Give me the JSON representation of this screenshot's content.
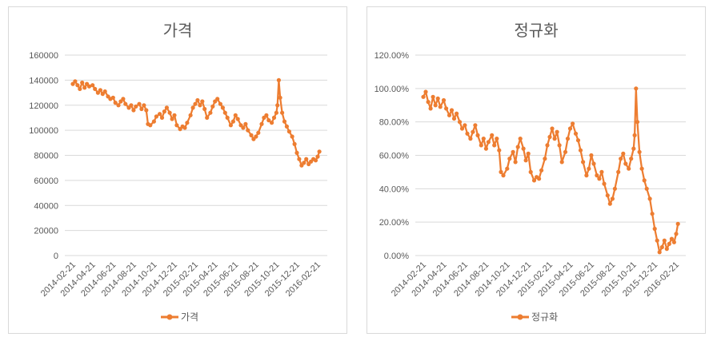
{
  "colors": {
    "series": "#ED7D31",
    "grid": "#D9D9D9",
    "text": "#595959"
  },
  "chart_data": [
    {
      "type": "line",
      "title": "가격",
      "xlabel": "",
      "ylabel": "",
      "ylim": [
        0,
        160000
      ],
      "yticks": [
        "0",
        "20000",
        "40000",
        "60000",
        "80000",
        "100000",
        "120000",
        "140000",
        "160000"
      ],
      "xticks": [
        "2014-02-21",
        "2014-04-21",
        "2014-06-21",
        "2014-08-21",
        "2014-10-21",
        "2014-12-21",
        "2015-02-21",
        "2015-04-21",
        "2015-06-21",
        "2015-08-21",
        "2015-10-21",
        "2015-12-21",
        "2016-02-21"
      ],
      "legend": "bottom",
      "series": [
        {
          "name": "가격",
          "points": [
            [
              "2014-02-21",
              137000
            ],
            [
              "2014-02-28",
              139000
            ],
            [
              "2014-03-07",
              136000
            ],
            [
              "2014-03-14",
              133000
            ],
            [
              "2014-03-21",
              138000
            ],
            [
              "2014-03-28",
              134000
            ],
            [
              "2014-04-04",
              137000
            ],
            [
              "2014-04-11",
              135000
            ],
            [
              "2014-04-21",
              136000
            ],
            [
              "2014-04-28",
              133000
            ],
            [
              "2014-05-07",
              130000
            ],
            [
              "2014-05-14",
              132000
            ],
            [
              "2014-05-21",
              129000
            ],
            [
              "2014-05-28",
              131000
            ],
            [
              "2014-06-06",
              127000
            ],
            [
              "2014-06-13",
              125000
            ],
            [
              "2014-06-21",
              126000
            ],
            [
              "2014-06-28",
              122000
            ],
            [
              "2014-07-07",
              120000
            ],
            [
              "2014-07-14",
              123000
            ],
            [
              "2014-07-21",
              125000
            ],
            [
              "2014-07-28",
              121000
            ],
            [
              "2014-08-07",
              118000
            ],
            [
              "2014-08-14",
              120000
            ],
            [
              "2014-08-21",
              116000
            ],
            [
              "2014-08-28",
              119000
            ],
            [
              "2014-09-07",
              121000
            ],
            [
              "2014-09-14",
              117000
            ],
            [
              "2014-09-21",
              120000
            ],
            [
              "2014-09-28",
              116000
            ],
            [
              "2014-10-03",
              105000
            ],
            [
              "2014-10-10",
              104000
            ],
            [
              "2014-10-21",
              107000
            ],
            [
              "2014-10-28",
              111000
            ],
            [
              "2014-11-07",
              113000
            ],
            [
              "2014-11-14",
              110000
            ],
            [
              "2014-11-21",
              115000
            ],
            [
              "2014-11-28",
              118000
            ],
            [
              "2014-12-07",
              114000
            ],
            [
              "2014-12-14",
              109000
            ],
            [
              "2014-12-21",
              112000
            ],
            [
              "2014-12-28",
              104000
            ],
            [
              "2015-01-07",
              101000
            ],
            [
              "2015-01-14",
              103000
            ],
            [
              "2015-01-21",
              102000
            ],
            [
              "2015-01-28",
              106000
            ],
            [
              "2015-02-07",
              112000
            ],
            [
              "2015-02-14",
              118000
            ],
            [
              "2015-02-21",
              121000
            ],
            [
              "2015-02-28",
              124000
            ],
            [
              "2015-03-07",
              120000
            ],
            [
              "2015-03-14",
              123000
            ],
            [
              "2015-03-21",
              117000
            ],
            [
              "2015-03-28",
              110000
            ],
            [
              "2015-04-07",
              114000
            ],
            [
              "2015-04-14",
              119000
            ],
            [
              "2015-04-21",
              123000
            ],
            [
              "2015-04-28",
              125000
            ],
            [
              "2015-05-07",
              121000
            ],
            [
              "2015-05-14",
              118000
            ],
            [
              "2015-05-21",
              114000
            ],
            [
              "2015-05-28",
              110000
            ],
            [
              "2015-06-07",
              104000
            ],
            [
              "2015-06-14",
              107000
            ],
            [
              "2015-06-21",
              112000
            ],
            [
              "2015-06-28",
              109000
            ],
            [
              "2015-07-07",
              104000
            ],
            [
              "2015-07-14",
              102000
            ],
            [
              "2015-07-21",
              105000
            ],
            [
              "2015-07-28",
              100000
            ],
            [
              "2015-08-07",
              96000
            ],
            [
              "2015-08-14",
              93000
            ],
            [
              "2015-08-21",
              95000
            ],
            [
              "2015-08-28",
              98000
            ],
            [
              "2015-09-07",
              105000
            ],
            [
              "2015-09-14",
              110000
            ],
            [
              "2015-09-21",
              112000
            ],
            [
              "2015-09-28",
              108000
            ],
            [
              "2015-10-07",
              106000
            ],
            [
              "2015-10-14",
              110000
            ],
            [
              "2015-10-21",
              114000
            ],
            [
              "2015-10-24",
              120000
            ],
            [
              "2015-10-28",
              140000
            ],
            [
              "2015-11-01",
              126000
            ],
            [
              "2015-11-07",
              114000
            ],
            [
              "2015-11-14",
              107000
            ],
            [
              "2015-11-21",
              103000
            ],
            [
              "2015-11-28",
              99000
            ],
            [
              "2015-12-07",
              95000
            ],
            [
              "2015-12-14",
              89000
            ],
            [
              "2015-12-21",
              82000
            ],
            [
              "2015-12-28",
              77000
            ],
            [
              "2016-01-04",
              72000
            ],
            [
              "2016-01-11",
              74000
            ],
            [
              "2016-01-18",
              77000
            ],
            [
              "2016-01-25",
              73000
            ],
            [
              "2016-02-01",
              75000
            ],
            [
              "2016-02-08",
              77000
            ],
            [
              "2016-02-15",
              76000
            ],
            [
              "2016-02-21",
              79000
            ],
            [
              "2016-02-26",
              83000
            ]
          ]
        }
      ]
    },
    {
      "type": "line",
      "title": "정규화",
      "xlabel": "",
      "ylabel": "",
      "ylim": [
        0,
        1.2
      ],
      "yticks": [
        "0.00%",
        "20.00%",
        "40.00%",
        "60.00%",
        "80.00%",
        "100.00%",
        "120.00%"
      ],
      "xticks": [
        "2014-02-21",
        "2014-04-21",
        "2014-06-21",
        "2014-08-21",
        "2014-10-21",
        "2014-12-21",
        "2015-02-21",
        "2015-04-21",
        "2015-06-21",
        "2015-08-21",
        "2015-10-21",
        "2015-12-21",
        "2016-02-21"
      ],
      "legend": "bottom",
      "series": [
        {
          "name": "정규화",
          "points": [
            [
              "2014-02-21",
              0.95
            ],
            [
              "2014-02-28",
              0.98
            ],
            [
              "2014-03-07",
              0.92
            ],
            [
              "2014-03-14",
              0.88
            ],
            [
              "2014-03-21",
              0.95
            ],
            [
              "2014-03-28",
              0.9
            ],
            [
              "2014-04-04",
              0.94
            ],
            [
              "2014-04-11",
              0.89
            ],
            [
              "2014-04-21",
              0.93
            ],
            [
              "2014-04-28",
              0.88
            ],
            [
              "2014-05-07",
              0.84
            ],
            [
              "2014-05-14",
              0.87
            ],
            [
              "2014-05-21",
              0.82
            ],
            [
              "2014-05-28",
              0.85
            ],
            [
              "2014-06-06",
              0.8
            ],
            [
              "2014-06-13",
              0.76
            ],
            [
              "2014-06-21",
              0.78
            ],
            [
              "2014-06-28",
              0.73
            ],
            [
              "2014-07-07",
              0.7
            ],
            [
              "2014-07-14",
              0.74
            ],
            [
              "2014-07-21",
              0.78
            ],
            [
              "2014-07-28",
              0.72
            ],
            [
              "2014-08-07",
              0.66
            ],
            [
              "2014-08-14",
              0.7
            ],
            [
              "2014-08-21",
              0.64
            ],
            [
              "2014-08-28",
              0.68
            ],
            [
              "2014-09-07",
              0.72
            ],
            [
              "2014-09-14",
              0.66
            ],
            [
              "2014-09-21",
              0.7
            ],
            [
              "2014-09-28",
              0.63
            ],
            [
              "2014-10-03",
              0.5
            ],
            [
              "2014-10-10",
              0.48
            ],
            [
              "2014-10-21",
              0.52
            ],
            [
              "2014-10-28",
              0.58
            ],
            [
              "2014-11-07",
              0.62
            ],
            [
              "2014-11-14",
              0.56
            ],
            [
              "2014-11-21",
              0.65
            ],
            [
              "2014-11-28",
              0.7
            ],
            [
              "2014-12-07",
              0.64
            ],
            [
              "2014-12-14",
              0.57
            ],
            [
              "2014-12-21",
              0.61
            ],
            [
              "2014-12-28",
              0.5
            ],
            [
              "2015-01-07",
              0.45
            ],
            [
              "2015-01-14",
              0.47
            ],
            [
              "2015-01-21",
              0.46
            ],
            [
              "2015-01-28",
              0.51
            ],
            [
              "2015-02-07",
              0.58
            ],
            [
              "2015-02-14",
              0.66
            ],
            [
              "2015-02-21",
              0.71
            ],
            [
              "2015-02-28",
              0.76
            ],
            [
              "2015-03-07",
              0.7
            ],
            [
              "2015-03-14",
              0.74
            ],
            [
              "2015-03-21",
              0.66
            ],
            [
              "2015-03-28",
              0.56
            ],
            [
              "2015-04-07",
              0.62
            ],
            [
              "2015-04-14",
              0.7
            ],
            [
              "2015-04-21",
              0.76
            ],
            [
              "2015-04-28",
              0.79
            ],
            [
              "2015-05-07",
              0.73
            ],
            [
              "2015-05-14",
              0.69
            ],
            [
              "2015-05-21",
              0.63
            ],
            [
              "2015-05-28",
              0.56
            ],
            [
              "2015-06-07",
              0.48
            ],
            [
              "2015-06-14",
              0.52
            ],
            [
              "2015-06-21",
              0.6
            ],
            [
              "2015-06-28",
              0.55
            ],
            [
              "2015-07-07",
              0.48
            ],
            [
              "2015-07-14",
              0.46
            ],
            [
              "2015-07-21",
              0.5
            ],
            [
              "2015-07-28",
              0.43
            ],
            [
              "2015-08-07",
              0.36
            ],
            [
              "2015-08-14",
              0.31
            ],
            [
              "2015-08-21",
              0.34
            ],
            [
              "2015-08-28",
              0.4
            ],
            [
              "2015-09-07",
              0.5
            ],
            [
              "2015-09-14",
              0.58
            ],
            [
              "2015-09-21",
              0.61
            ],
            [
              "2015-09-28",
              0.55
            ],
            [
              "2015-10-07",
              0.52
            ],
            [
              "2015-10-14",
              0.58
            ],
            [
              "2015-10-21",
              0.64
            ],
            [
              "2015-10-24",
              0.72
            ],
            [
              "2015-10-28",
              1.0
            ],
            [
              "2015-11-01",
              0.8
            ],
            [
              "2015-11-07",
              0.62
            ],
            [
              "2015-11-14",
              0.52
            ],
            [
              "2015-11-21",
              0.45
            ],
            [
              "2015-11-28",
              0.4
            ],
            [
              "2015-12-07",
              0.34
            ],
            [
              "2015-12-14",
              0.25
            ],
            [
              "2015-12-21",
              0.16
            ],
            [
              "2015-12-28",
              0.09
            ],
            [
              "2016-01-04",
              0.02
            ],
            [
              "2016-01-11",
              0.05
            ],
            [
              "2016-01-18",
              0.09
            ],
            [
              "2016-01-25",
              0.04
            ],
            [
              "2016-02-01",
              0.07
            ],
            [
              "2016-02-08",
              0.1
            ],
            [
              "2016-02-15",
              0.08
            ],
            [
              "2016-02-21",
              0.13
            ],
            [
              "2016-02-26",
              0.19
            ]
          ]
        }
      ]
    }
  ]
}
